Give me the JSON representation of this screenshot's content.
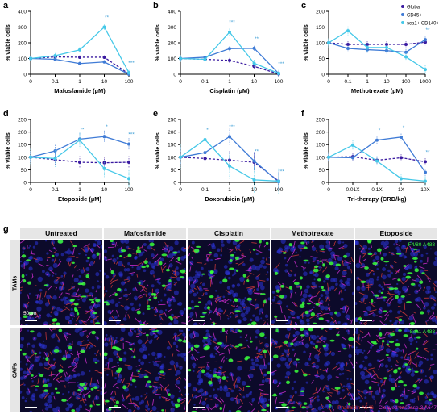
{
  "chart_data": [
    {
      "id": "a",
      "type": "line",
      "panel_label": "a",
      "x_tick_labels": [
        "0",
        "0.1",
        "1",
        "10",
        "100"
      ],
      "xlabel": "Mafosfamide (µM)",
      "ylabel": "% viable cells",
      "ylim": [
        0,
        400
      ],
      "yticks": [
        0,
        100,
        200,
        300,
        400
      ],
      "series": [
        {
          "name": "Global",
          "color": "#3a1aa0",
          "values": [
            100,
            110,
            108,
            108,
            2
          ]
        },
        {
          "name": "CD45+",
          "color": "#3f7bd6",
          "values": [
            100,
            95,
            68,
            78,
            0
          ]
        },
        {
          "name": "sca1+ CD140+",
          "color": "#45c8e8",
          "values": [
            100,
            118,
            155,
            300,
            10
          ]
        }
      ],
      "annotations": [
        {
          "x": "10",
          "text": "**"
        },
        {
          "x": "100",
          "text": "***"
        }
      ]
    },
    {
      "id": "b",
      "type": "line",
      "panel_label": "b",
      "x_tick_labels": [
        "0",
        "0.1",
        "1",
        "10",
        "100"
      ],
      "xlabel": "Cisplatin (µM)",
      "ylabel": "% viable cells",
      "ylim": [
        0,
        400
      ],
      "yticks": [
        0,
        100,
        200,
        300,
        400
      ],
      "series": [
        {
          "name": "Global",
          "color": "#3a1aa0",
          "values": [
            100,
            95,
            88,
            50,
            2
          ]
        },
        {
          "name": "CD45+",
          "color": "#3f7bd6",
          "values": [
            100,
            108,
            163,
            165,
            5
          ]
        },
        {
          "name": "sca1+ CD140+",
          "color": "#45c8e8",
          "values": [
            100,
            95,
            268,
            70,
            5
          ]
        }
      ],
      "annotations": [
        {
          "x": "1",
          "text": "***"
        },
        {
          "x": "10",
          "text": "**"
        },
        {
          "x": "100",
          "text": "***"
        }
      ]
    },
    {
      "id": "c",
      "type": "line",
      "panel_label": "c",
      "x_tick_labels": [
        "0",
        "0.1",
        "1",
        "10",
        "100",
        "1000"
      ],
      "xlabel": "Methotrexate (µM)",
      "ylabel": "% viable cells",
      "ylim": [
        0,
        200
      ],
      "yticks": [
        0,
        50,
        100,
        150,
        200
      ],
      "series": [
        {
          "name": "Global",
          "color": "#3a1aa0",
          "values": [
            100,
            95,
            95,
            95,
            95,
            102
          ]
        },
        {
          "name": "CD45+",
          "color": "#3f7bd6",
          "values": [
            100,
            82,
            78,
            75,
            70,
            110
          ]
        },
        {
          "name": "sca1+ CD140+",
          "color": "#45c8e8",
          "values": [
            100,
            138,
            85,
            85,
            55,
            15
          ]
        }
      ],
      "annotations": [
        {
          "x": "1000",
          "text": "**"
        }
      ],
      "legend_position": "top-right"
    },
    {
      "id": "d",
      "type": "line",
      "panel_label": "d",
      "x_tick_labels": [
        "0",
        "0.1",
        "1",
        "10",
        "100"
      ],
      "xlabel": "Etoposide (µM)",
      "ylabel": "% viable cells",
      "ylim": [
        0,
        250
      ],
      "yticks": [
        0,
        50,
        100,
        150,
        200,
        250
      ],
      "series": [
        {
          "name": "Global",
          "color": "#3a1aa0",
          "values": [
            100,
            90,
            80,
            78,
            80
          ]
        },
        {
          "name": "CD45+",
          "color": "#3f7bd6",
          "values": [
            100,
            125,
            172,
            182,
            152
          ]
        },
        {
          "name": "sca1+ CD140+",
          "color": "#45c8e8",
          "values": [
            100,
            95,
            168,
            55,
            15
          ]
        }
      ],
      "annotations": [
        {
          "x": "1",
          "text": "**"
        },
        {
          "x": "10",
          "text": "*"
        },
        {
          "x": "100",
          "text": "***"
        }
      ]
    },
    {
      "id": "e",
      "type": "line",
      "panel_label": "e",
      "x_tick_labels": [
        "0",
        "0.1",
        "1",
        "10",
        "100"
      ],
      "xlabel": "Doxorubicin (µM)",
      "ylabel": "% viable cells",
      "ylim": [
        0,
        250
      ],
      "yticks": [
        0,
        50,
        100,
        150,
        200,
        250
      ],
      "series": [
        {
          "name": "Global",
          "color": "#3a1aa0",
          "values": [
            100,
            95,
            88,
            80,
            5
          ]
        },
        {
          "name": "CD45+",
          "color": "#3f7bd6",
          "values": [
            100,
            118,
            182,
            85,
            2
          ]
        },
        {
          "name": "sca1+ CD140+",
          "color": "#45c8e8",
          "values": [
            100,
            170,
            65,
            10,
            5
          ]
        }
      ],
      "annotations": [
        {
          "x": "0.1",
          "text": "*"
        },
        {
          "x": "1",
          "text": "***"
        },
        {
          "x": "10",
          "text": "**"
        },
        {
          "x": "100",
          "text": "***"
        }
      ]
    },
    {
      "id": "f",
      "type": "line",
      "panel_label": "f",
      "x_tick_labels": [
        "0",
        "0.01X",
        "0.1X",
        "1X",
        "10X"
      ],
      "xlabel": "Tri-therapy (CRD/kg)",
      "ylabel": "% viable cells",
      "ylim": [
        0,
        250
      ],
      "yticks": [
        0,
        50,
        100,
        150,
        200,
        250
      ],
      "series": [
        {
          "name": "Global",
          "color": "#3a1aa0",
          "values": [
            100,
            102,
            88,
            98,
            82
          ]
        },
        {
          "name": "CD45+",
          "color": "#3f7bd6",
          "values": [
            100,
            98,
            168,
            180,
            40
          ]
        },
        {
          "name": "sca1+ CD140+",
          "color": "#45c8e8",
          "values": [
            100,
            148,
            85,
            15,
            5
          ]
        }
      ],
      "annotations": [
        {
          "x": "0.1X",
          "text": "*"
        },
        {
          "x": "1X",
          "text": "*"
        },
        {
          "x": "10X",
          "text": "**"
        }
      ]
    }
  ],
  "micrograph": {
    "panel_label": "g",
    "columns": [
      "Untreated",
      "Mafosfamide",
      "Cisplatin",
      "Methotrexate",
      "Etoposide"
    ],
    "rows": [
      "TAMs",
      "CAFs"
    ],
    "stain_labels": [
      "F4/80 A488",
      "Sca1 A488"
    ],
    "scale_bar": "50µm",
    "legend": [
      {
        "text": "DAPI",
        "color": "#2b35d8"
      },
      {
        "text": " - ",
        "color": "#000000"
      },
      {
        "text": "Phalloidin A546",
        "color": "#e03030"
      },
      {
        "text": " - ",
        "color": "#000000"
      },
      {
        "text": "Cleaved caspase-3 A647",
        "color": "#d62fd6"
      }
    ],
    "palette": {
      "dapi": "#2b35d8",
      "phalloidin": "#d63a3a",
      "caspase": "#d62fd6",
      "marker": "#39ff3c"
    }
  }
}
